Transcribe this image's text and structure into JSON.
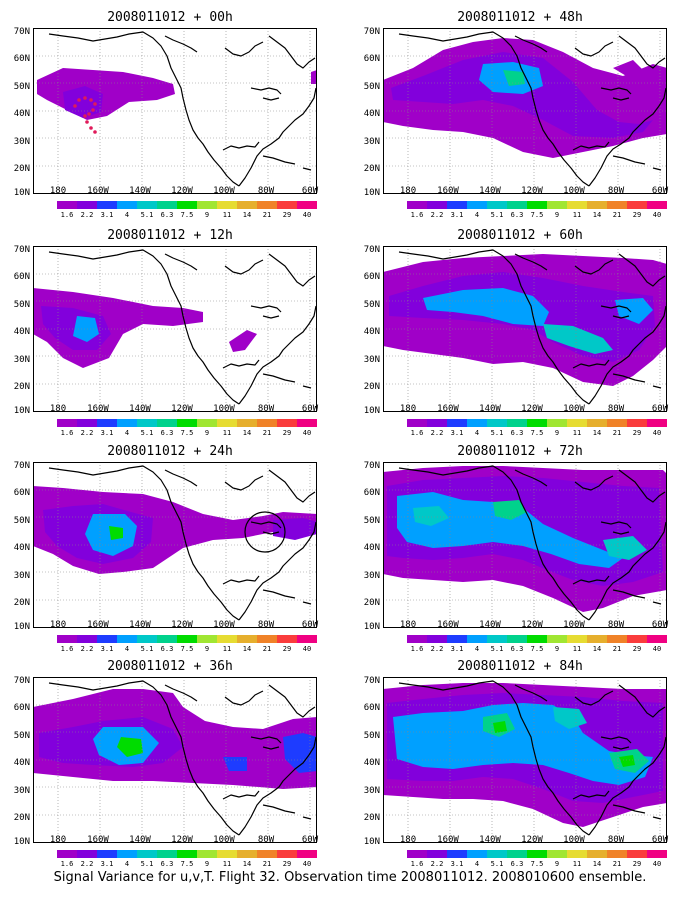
{
  "panels": [
    {
      "id": "p00",
      "title_a": "2008011012",
      "title_b": "+",
      "title_c": "00h"
    },
    {
      "id": "p12",
      "title_a": "2008011012",
      "title_b": "+",
      "title_c": "12h"
    },
    {
      "id": "p24",
      "title_a": "2008011012",
      "title_b": "+",
      "title_c": "24h"
    },
    {
      "id": "p36",
      "title_a": "2008011012",
      "title_b": "+",
      "title_c": "36h"
    },
    {
      "id": "p48",
      "title_a": "2008011012",
      "title_b": "+",
      "title_c": "48h"
    },
    {
      "id": "p60",
      "title_a": "2008011012",
      "title_b": "+",
      "title_c": "60h"
    },
    {
      "id": "p72",
      "title_a": "2008011012",
      "title_b": "+",
      "title_c": "72h"
    },
    {
      "id": "p84",
      "title_a": "2008011012",
      "title_b": "+",
      "title_c": "84h"
    }
  ],
  "lat_ticks": [
    "70N",
    "60N",
    "50N",
    "40N",
    "30N",
    "20N",
    "10N"
  ],
  "lon_ticks": [
    "180",
    "160W",
    "140W",
    "120W",
    "100W",
    "80W",
    "60W"
  ],
  "colorbar": {
    "levels": [
      "1.6",
      "2.2",
      "3.1",
      "4",
      "5.1",
      "6.3",
      "7.5",
      "9",
      "11",
      "14",
      "21",
      "29",
      "40"
    ],
    "colors": [
      "#a000c8",
      "#8200dc",
      "#1e3cff",
      "#00a0ff",
      "#00c8c8",
      "#00d28c",
      "#00dc00",
      "#a0e632",
      "#e6dc32",
      "#e6af2d",
      "#f08228",
      "#fa3c3c",
      "#f00082"
    ]
  },
  "footer": {
    "caption": "Signal Variance for u,v,T. Flight 32. Observation time 2008011012. 2008010600 ensemble."
  }
}
